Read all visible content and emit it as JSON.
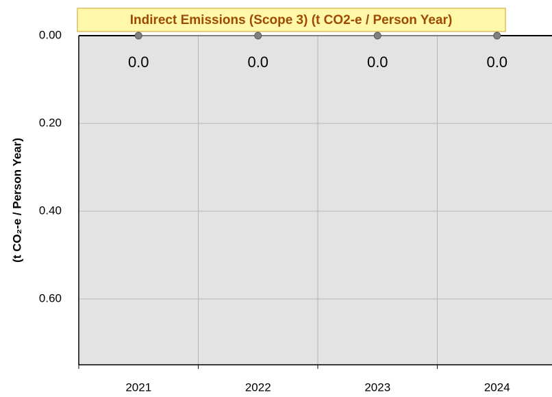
{
  "chart_data": {
    "type": "line",
    "title": "Indirect Emissions (Scope 3) (t CO2-e / Person Year)",
    "y_label": "(t CO₂-e  / Person Year)",
    "categories": [
      "2021",
      "2022",
      "2023",
      "2024"
    ],
    "series": [
      {
        "name": "Indirect Emissions",
        "color": "#808080",
        "values": [
          0,
          0,
          0,
          0
        ],
        "value_labels": [
          "0.0",
          "0.0",
          "0.0",
          "0.0"
        ]
      }
    ],
    "ylim": [
      0,
      0.75
    ],
    "y_reversed": true,
    "yticks": [
      {
        "value": 0,
        "label": "0.00"
      },
      {
        "value": 0.2,
        "label": "0.20"
      },
      {
        "value": 0.4,
        "label": "0.40"
      },
      {
        "value": 0.6,
        "label": "0.60"
      }
    ],
    "grid": true
  }
}
